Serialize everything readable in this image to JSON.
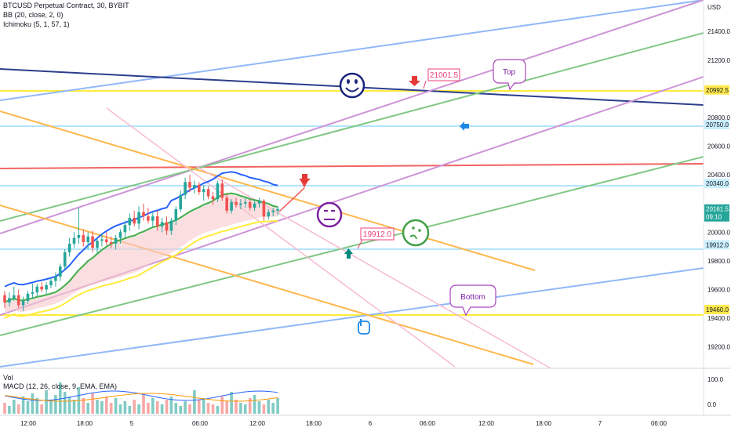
{
  "header": {
    "symbol_line": "BTCUSD Perpetual Contract, 30, BYBIT",
    "bb_line": "BB (20, close, 2, 0)",
    "ichimoku_line": "Ichimoku (5, 1, 57, 1)",
    "vol_label": "Vol",
    "macd_line": "MACD (12, 26, close, 9, EMA, EMA)"
  },
  "axes": {
    "currency": "USD",
    "price_ticks": [
      "21400.0",
      "21200.0",
      "20800.0",
      "20600.0",
      "20400.0",
      "20000.0",
      "19800.0",
      "19600.0",
      "19400.0",
      "19200.0"
    ],
    "price_tick_values": [
      21400,
      21200,
      20800,
      20600,
      20400,
      20000,
      19800,
      19600,
      19400,
      19200
    ],
    "indicator_ticks": [
      "100.0",
      "0.0"
    ],
    "time_ticks": [
      "12:00",
      "18:00",
      "5",
      "06:00",
      "12:00",
      "18:00",
      "6",
      "06:00",
      "12:00",
      "18:00",
      "7",
      "06:00"
    ]
  },
  "price_tags": [
    {
      "text": "20992.5",
      "value": 20992.5,
      "color": "#ffe94d",
      "text_color": "#131722"
    },
    {
      "text": "20750.0",
      "value": 20750,
      "color": "#c9efff",
      "text_color": "#131722"
    },
    {
      "text": "20340.0",
      "value": 20340,
      "color": "#c9efff",
      "text_color": "#131722"
    },
    {
      "text": "20161.5",
      "value": 20161.5,
      "color": "#26a69a",
      "text_color": "#ffffff"
    },
    {
      "text": "09:10",
      "value": 20107,
      "color": "#26a69a",
      "text_color": "#ffffff"
    },
    {
      "text": "19912.0",
      "value": 19912,
      "color": "#c9efff",
      "text_color": "#131722"
    },
    {
      "text": "19460.0",
      "value": 19460,
      "color": "#ffe94d",
      "text_color": "#131722"
    }
  ],
  "annotations": {
    "price_high": "21001.5",
    "price_low": "19912.0",
    "top": "Top",
    "bottom": "Bottom"
  },
  "colors": {
    "up": "#26a69a",
    "down": "#ef5350",
    "bb_band": "#2962ff",
    "ichimoku": "#4caf50",
    "yellow": "#ffeb3b",
    "cloud": "#f8c8cc"
  },
  "chart_data": {
    "type": "candlestick",
    "title": "BTCUSD Perpetual Contract, 30, BYBIT",
    "ylim": [
      19050,
      21620
    ],
    "horizontal_levels": [
      20992.5,
      20750,
      20340,
      19912,
      19460
    ],
    "candles": [
      {
        "o": 19560,
        "h": 19590,
        "l": 19470,
        "c": 19510
      },
      {
        "o": 19510,
        "h": 19580,
        "l": 19480,
        "c": 19540
      },
      {
        "o": 19540,
        "h": 19620,
        "l": 19520,
        "c": 19560
      },
      {
        "o": 19560,
        "h": 19600,
        "l": 19470,
        "c": 19490
      },
      {
        "o": 19490,
        "h": 19550,
        "l": 19450,
        "c": 19520
      },
      {
        "o": 19520,
        "h": 19590,
        "l": 19500,
        "c": 19570
      },
      {
        "o": 19570,
        "h": 19640,
        "l": 19540,
        "c": 19580
      },
      {
        "o": 19580,
        "h": 19640,
        "l": 19550,
        "c": 19620
      },
      {
        "o": 19620,
        "h": 19650,
        "l": 19580,
        "c": 19600
      },
      {
        "o": 19600,
        "h": 19650,
        "l": 19570,
        "c": 19630
      },
      {
        "o": 19630,
        "h": 19680,
        "l": 19610,
        "c": 19660
      },
      {
        "o": 19660,
        "h": 19720,
        "l": 19620,
        "c": 19690
      },
      {
        "o": 19690,
        "h": 19780,
        "l": 19660,
        "c": 19760
      },
      {
        "o": 19760,
        "h": 19880,
        "l": 19740,
        "c": 19860
      },
      {
        "o": 19860,
        "h": 19960,
        "l": 19830,
        "c": 19920
      },
      {
        "o": 19920,
        "h": 20000,
        "l": 19890,
        "c": 19960
      },
      {
        "o": 19960,
        "h": 20170,
        "l": 19920,
        "c": 19980
      },
      {
        "o": 19980,
        "h": 20020,
        "l": 19900,
        "c": 19930
      },
      {
        "o": 19930,
        "h": 20000,
        "l": 19880,
        "c": 19970
      },
      {
        "o": 19970,
        "h": 20010,
        "l": 19860,
        "c": 19890
      },
      {
        "o": 19890,
        "h": 19960,
        "l": 19850,
        "c": 19940
      },
      {
        "o": 19940,
        "h": 19990,
        "l": 19900,
        "c": 19950
      },
      {
        "o": 19950,
        "h": 20000,
        "l": 19910,
        "c": 19930
      },
      {
        "o": 19930,
        "h": 19970,
        "l": 19890,
        "c": 19920
      },
      {
        "o": 19920,
        "h": 19980,
        "l": 19880,
        "c": 19960
      },
      {
        "o": 19960,
        "h": 20020,
        "l": 19920,
        "c": 20000
      },
      {
        "o": 20000,
        "h": 20080,
        "l": 19960,
        "c": 20050
      },
      {
        "o": 20050,
        "h": 20130,
        "l": 20010,
        "c": 20100
      },
      {
        "o": 20100,
        "h": 20150,
        "l": 20040,
        "c": 20060
      },
      {
        "o": 20060,
        "h": 20180,
        "l": 20020,
        "c": 20140
      },
      {
        "o": 20140,
        "h": 20200,
        "l": 20080,
        "c": 20110
      },
      {
        "o": 20110,
        "h": 20170,
        "l": 20060,
        "c": 20080
      },
      {
        "o": 20080,
        "h": 20140,
        "l": 20040,
        "c": 20110
      },
      {
        "o": 20110,
        "h": 20150,
        "l": 20010,
        "c": 20040
      },
      {
        "o": 20040,
        "h": 20100,
        "l": 20000,
        "c": 20070
      },
      {
        "o": 20070,
        "h": 20110,
        "l": 19980,
        "c": 20010
      },
      {
        "o": 20010,
        "h": 20100,
        "l": 19980,
        "c": 20080
      },
      {
        "o": 20080,
        "h": 20180,
        "l": 20050,
        "c": 20160
      },
      {
        "o": 20160,
        "h": 20290,
        "l": 20140,
        "c": 20260
      },
      {
        "o": 20260,
        "h": 20380,
        "l": 20230,
        "c": 20350
      },
      {
        "o": 20350,
        "h": 20400,
        "l": 20280,
        "c": 20310
      },
      {
        "o": 20310,
        "h": 20360,
        "l": 20270,
        "c": 20330
      },
      {
        "o": 20330,
        "h": 20350,
        "l": 20260,
        "c": 20280
      },
      {
        "o": 20280,
        "h": 20330,
        "l": 20220,
        "c": 20300
      },
      {
        "o": 20300,
        "h": 20320,
        "l": 20230,
        "c": 20250
      },
      {
        "o": 20250,
        "h": 20280,
        "l": 20190,
        "c": 20230
      },
      {
        "o": 20230,
        "h": 20360,
        "l": 20210,
        "c": 20340
      },
      {
        "o": 20340,
        "h": 20370,
        "l": 20220,
        "c": 20240
      },
      {
        "o": 20240,
        "h": 20270,
        "l": 20130,
        "c": 20150
      },
      {
        "o": 20150,
        "h": 20230,
        "l": 20130,
        "c": 20210
      },
      {
        "o": 20210,
        "h": 20240,
        "l": 20170,
        "c": 20190
      },
      {
        "o": 20190,
        "h": 20230,
        "l": 20160,
        "c": 20200
      },
      {
        "o": 20200,
        "h": 20240,
        "l": 20170,
        "c": 20210
      },
      {
        "o": 20210,
        "h": 20230,
        "l": 20150,
        "c": 20170
      },
      {
        "o": 20170,
        "h": 20220,
        "l": 20150,
        "c": 20200
      },
      {
        "o": 20200,
        "h": 20240,
        "l": 20170,
        "c": 20220
      },
      {
        "o": 20220,
        "h": 20230,
        "l": 20080,
        "c": 20110
      },
      {
        "o": 20110,
        "h": 20160,
        "l": 20090,
        "c": 20140
      },
      {
        "o": 20140,
        "h": 20170,
        "l": 20110,
        "c": 20150
      },
      {
        "o": 20150,
        "h": 20180,
        "l": 20120,
        "c": 20161.5
      }
    ]
  }
}
